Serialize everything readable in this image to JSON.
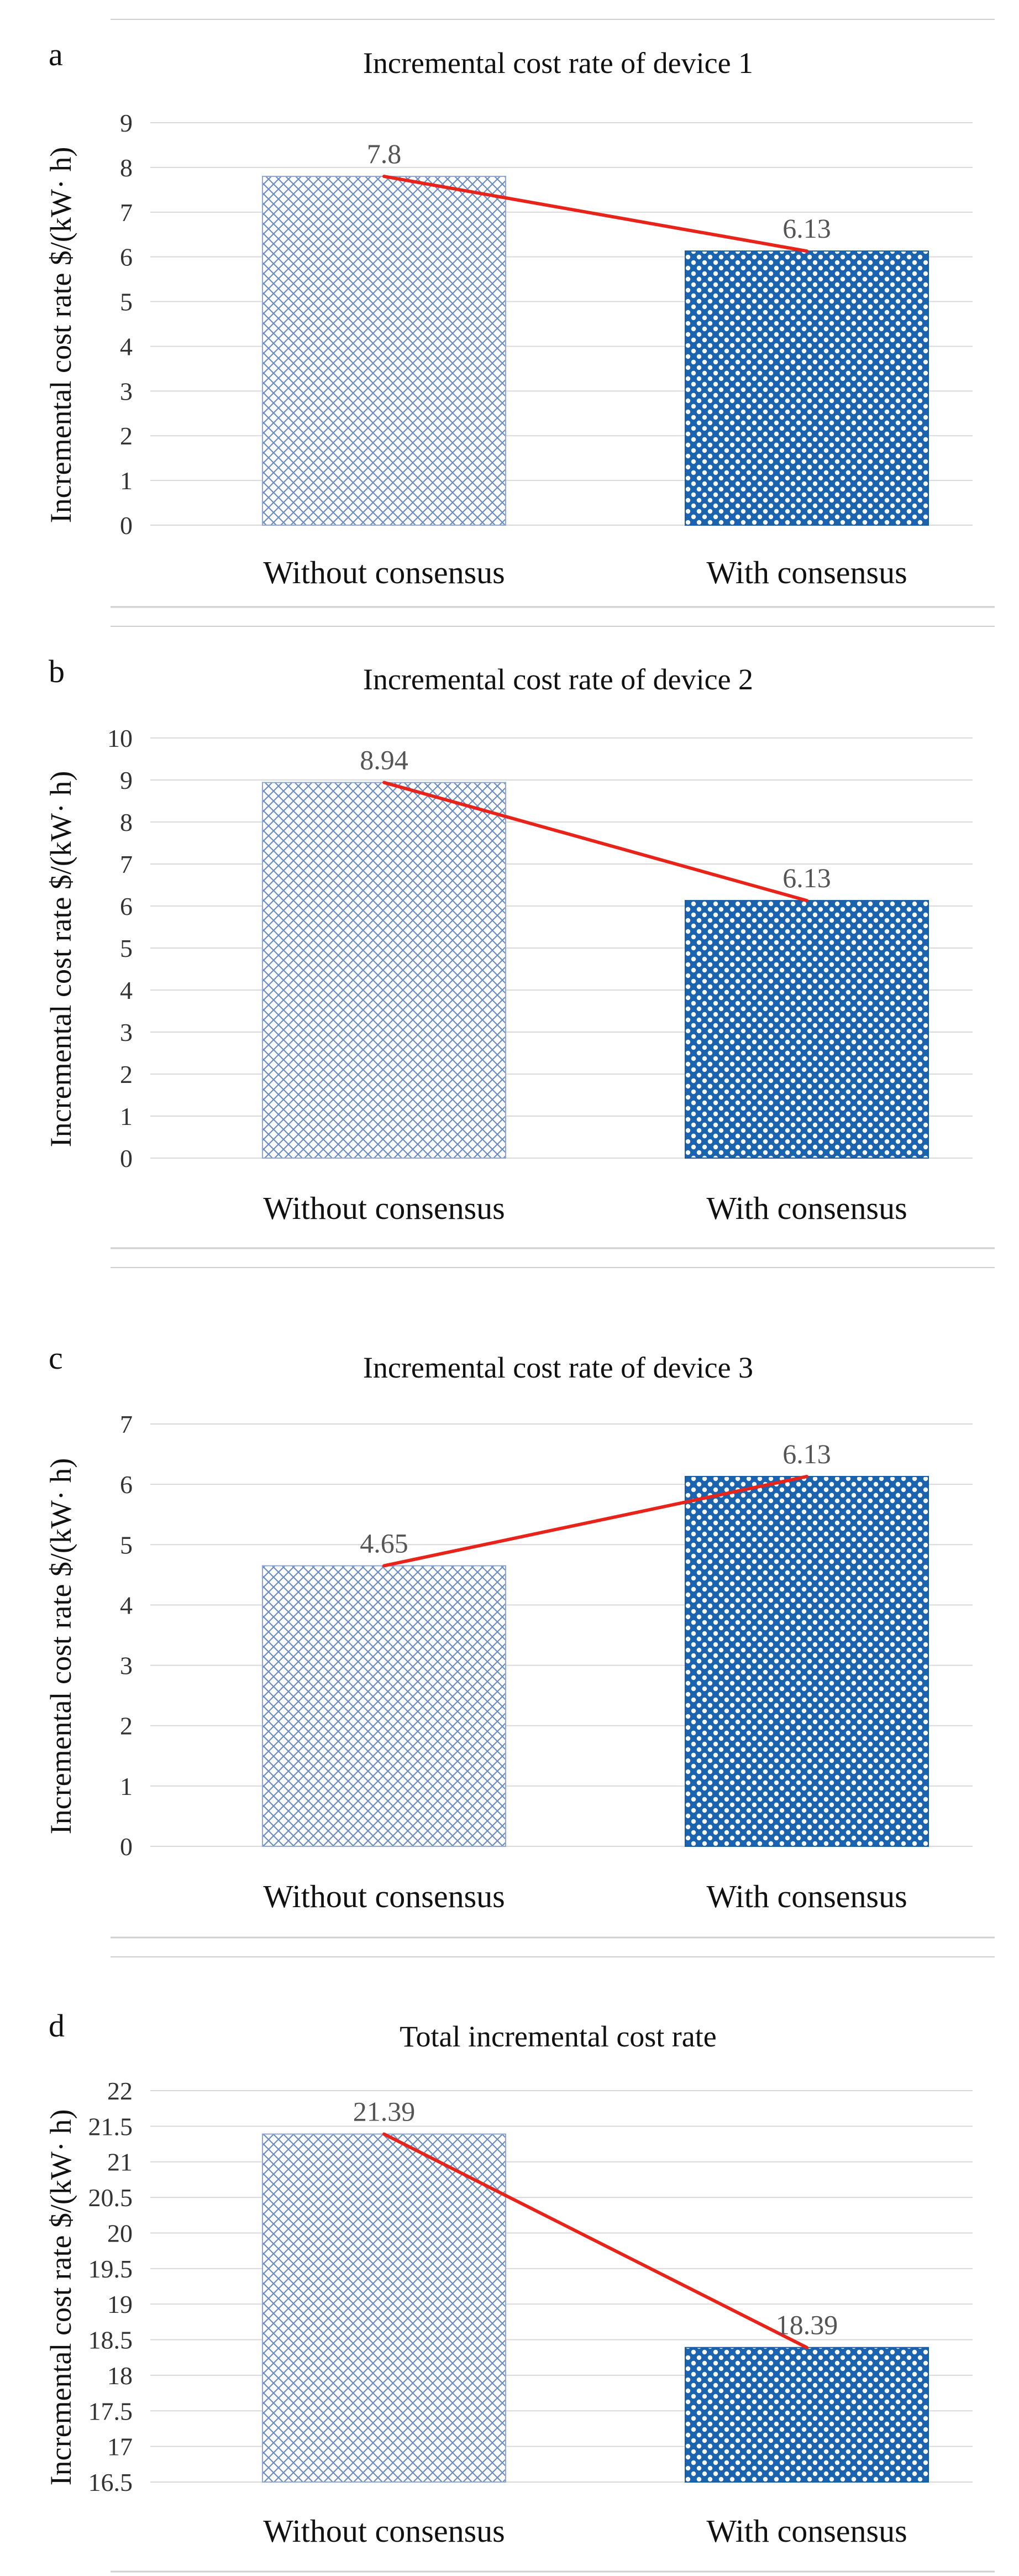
{
  "colors": {
    "bar_without": "#5b7db8",
    "bar_with": "#1a63b0",
    "trend_line": "#e8231a",
    "gridline": "#d9d9d9",
    "separator": "#cfcfcf"
  },
  "chart_data": [
    {
      "type": "bar",
      "panel_label": "a",
      "title": "Incremental cost rate of device 1",
      "ylabel": "Incremental cost rate $/(kW· h)",
      "xlabel": "",
      "categories": [
        "Without consensus",
        "With consensus"
      ],
      "values": [
        7.8,
        6.13
      ],
      "data_labels": [
        "7.8",
        "6.13"
      ],
      "ylim": [
        0,
        9
      ],
      "ytick_step": 1,
      "yticks": [
        "0",
        "1",
        "2",
        "3",
        "4",
        "5",
        "6",
        "7",
        "8",
        "9"
      ]
    },
    {
      "type": "bar",
      "panel_label": "b",
      "title": "Incremental cost rate of device 2",
      "ylabel": "Incremental cost rate $/(kW· h)",
      "xlabel": "",
      "categories": [
        "Without consensus",
        "With consensus"
      ],
      "values": [
        8.94,
        6.13
      ],
      "data_labels": [
        "8.94",
        "6.13"
      ],
      "ylim": [
        0,
        10
      ],
      "ytick_step": 1,
      "yticks": [
        "0",
        "1",
        "2",
        "3",
        "4",
        "5",
        "6",
        "7",
        "8",
        "9",
        "10"
      ]
    },
    {
      "type": "bar",
      "panel_label": "c",
      "title": "Incremental cost rate of device 3",
      "ylabel": "Incremental cost rate $/(kW· h)",
      "xlabel": "",
      "categories": [
        "Without consensus",
        "With consensus"
      ],
      "values": [
        4.65,
        6.13
      ],
      "data_labels": [
        "4.65",
        "6.13"
      ],
      "ylim": [
        0,
        7
      ],
      "ytick_step": 1,
      "yticks": [
        "0",
        "1",
        "2",
        "3",
        "4",
        "5",
        "6",
        "7"
      ]
    },
    {
      "type": "bar",
      "panel_label": "d",
      "title": "Total incremental cost rate",
      "ylabel": "Incremental cost rate $/(kW· h)",
      "xlabel": "",
      "categories": [
        "Without consensus",
        "With consensus"
      ],
      "values": [
        21.39,
        18.39
      ],
      "data_labels": [
        "21.39",
        "18.39"
      ],
      "ylim": [
        16.5,
        22
      ],
      "ytick_step": 0.5,
      "yticks": [
        "16.5",
        "17",
        "17.5",
        "18",
        "18.5",
        "19",
        "19.5",
        "20",
        "20.5",
        "21",
        "21.5",
        "22"
      ]
    }
  ]
}
